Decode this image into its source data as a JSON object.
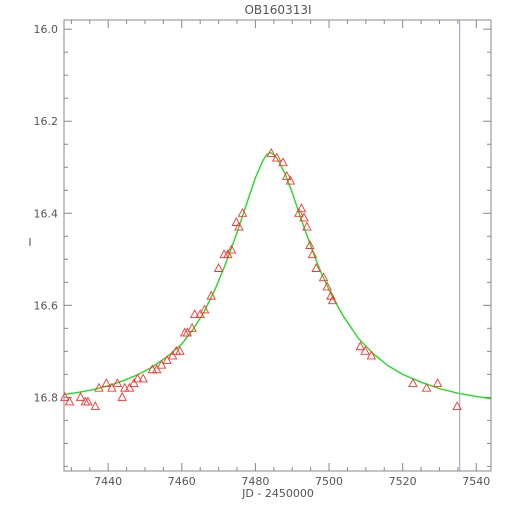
{
  "chart_data": {
    "type": "scatter",
    "title": "OB160313I",
    "xlabel": "JD - 2450000",
    "ylabel": "I",
    "xlim": [
      7428,
      7544
    ],
    "ylim": [
      16.96,
      15.98
    ],
    "y_inverted": true,
    "x_ticks": [
      7440,
      7460,
      7480,
      7500,
      7520,
      7540
    ],
    "y_ticks": [
      16.0,
      16.2,
      16.4,
      16.6,
      16.8
    ],
    "y_tick_labels": [
      "16.0",
      "16.2",
      "16.4",
      "16.6",
      "16.8"
    ],
    "marker": "triangle",
    "colors": {
      "points": "#ff3030",
      "model": "#22dd22",
      "frame": "#888888",
      "marker_line": "#9999cc"
    },
    "vertical_line_x": 7535.5,
    "series": [
      {
        "kind": "observations",
        "x": [
          7428.2,
          7429.5,
          7432.5,
          7433.8,
          7434.5,
          7436.5,
          7437.5,
          7439.5,
          7441.0,
          7442.5,
          7443.8,
          7444.5,
          7445.8,
          7447.0,
          7448.0,
          7449.5,
          7452.0,
          7453.2,
          7454.5,
          7456.0,
          7457.5,
          7458.5,
          7459.5,
          7460.8,
          7461.5,
          7462.8,
          7463.5,
          7465.0,
          7466.2,
          7468.0,
          7470.0,
          7471.5,
          7472.5,
          7473.5,
          7474.8,
          7475.5,
          7476.5,
          7484.3,
          7485.8,
          7487.5,
          7488.5,
          7489.5,
          7491.8,
          7492.5,
          7493.2,
          7494.0,
          7494.8,
          7495.5,
          7496.5,
          7498.5,
          7499.5,
          7500.5,
          7501.0,
          7508.5,
          7509.8,
          7511.5,
          7522.8,
          7526.5,
          7529.5,
          7534.8
        ],
        "y": [
          16.8,
          16.81,
          16.8,
          16.81,
          16.81,
          16.82,
          16.78,
          16.77,
          16.78,
          16.77,
          16.8,
          16.78,
          16.78,
          16.77,
          16.76,
          16.76,
          16.74,
          16.74,
          16.73,
          16.72,
          16.71,
          16.7,
          16.7,
          16.66,
          16.66,
          16.65,
          16.62,
          16.62,
          16.61,
          16.58,
          16.52,
          16.49,
          16.49,
          16.48,
          16.42,
          16.43,
          16.4,
          16.27,
          16.28,
          16.29,
          16.32,
          16.33,
          16.4,
          16.39,
          16.41,
          16.43,
          16.47,
          16.49,
          16.52,
          16.54,
          16.56,
          16.58,
          16.59,
          16.69,
          16.7,
          16.71,
          16.77,
          16.78,
          16.77,
          16.82
        ]
      },
      {
        "kind": "model",
        "x": [
          7428,
          7432,
          7436,
          7440,
          7444,
          7448,
          7452,
          7456,
          7460,
          7463,
          7466,
          7469,
          7472,
          7475,
          7478,
          7480,
          7482,
          7483,
          7484,
          7485,
          7486,
          7488,
          7490,
          7492,
          7494,
          7496,
          7498,
          7501,
          7504,
          7508,
          7512,
          7516,
          7520,
          7525,
          7530,
          7535,
          7540,
          7544
        ],
        "y": [
          16.794,
          16.789,
          16.783,
          16.775,
          16.764,
          16.751,
          16.734,
          16.712,
          16.684,
          16.653,
          16.615,
          16.566,
          16.508,
          16.442,
          16.37,
          16.323,
          16.286,
          16.273,
          16.268,
          16.272,
          16.282,
          16.313,
          16.355,
          16.403,
          16.448,
          16.492,
          16.532,
          16.583,
          16.625,
          16.672,
          16.705,
          16.731,
          16.75,
          16.767,
          16.781,
          16.791,
          16.798,
          16.803
        ]
      }
    ]
  }
}
